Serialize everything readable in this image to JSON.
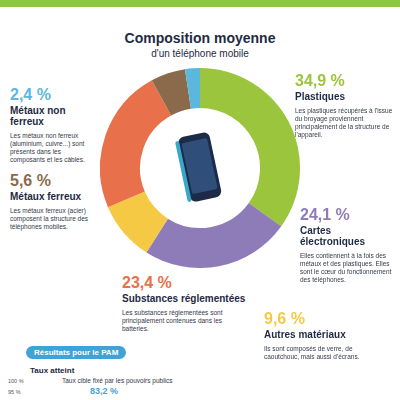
{
  "title": "Composition moyenne",
  "subtitle": "d'un téléphone mobile",
  "chart_data": {
    "type": "doughnut",
    "categories": [
      "Plastiques",
      "Cartes électroniques",
      "Autres matériaux",
      "Substances réglementées",
      "Métaux ferreux",
      "Métaux non ferreux"
    ],
    "values": [
      34.9,
      24.1,
      9.6,
      23.4,
      5.6,
      2.4
    ],
    "value_labels": [
      "34,9 %",
      "24,1 %",
      "9,6 %",
      "23,4 %",
      "5,6 %",
      "2,4 %"
    ],
    "colors": [
      "#9bc53d",
      "#8e7cb8",
      "#f6c945",
      "#e8704a",
      "#8b6a4c",
      "#5bb8dc"
    ],
    "descriptions": [
      "Les plastiques récupérés à l'issue du broyage proviennent principalement de la structure de l'appareil.",
      "Elles contiennent à la fois des métaux et des plastiques. Elles sont le cœur du fonctionnement des téléphones.",
      "Ils sont composés de verre, de caoutchouc, mais aussi d'écrans.",
      "Les substances réglementées sont principalement contenues dans les batteries.",
      "Les métaux ferreux (acier) composent la structure des téléphones mobiles.",
      "Les métaux non ferreux (aluminium, cuivre...) sont présents dans les composants et les câbles."
    ],
    "legend": false,
    "data_labels": false
  },
  "results": {
    "title": "Résultats pour le PAM",
    "achieved_label": "Taux atteint",
    "scale_labels": [
      "100 %",
      "95 %"
    ],
    "target_label": "Taux cible fixé par les pouvoirs publics",
    "rate": "83,2 %"
  }
}
